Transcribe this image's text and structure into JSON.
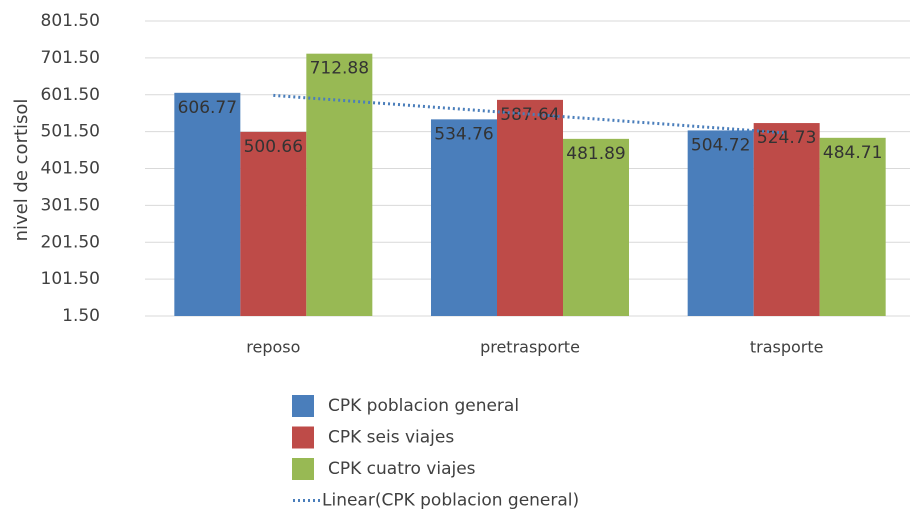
{
  "chart_data": {
    "type": "bar",
    "y_axis_label": "nivel de cortisol",
    "categories": [
      "reposo",
      "pretrasporte",
      "trasporte"
    ],
    "series": [
      {
        "name": "CPK poblacion general",
        "color": "#4a7ebb",
        "values": [
          606.77,
          534.76,
          504.72
        ],
        "trendline": {
          "name": "Linear(CPK poblacion general)",
          "color": "#4a7ebb",
          "style": "dotted"
        }
      },
      {
        "name": "CPK seis viajes",
        "color": "#be4b48",
        "values": [
          500.66,
          587.64,
          524.73
        ]
      },
      {
        "name": "CPK cuatro viajes",
        "color": "#98b954",
        "values": [
          712.88,
          481.89,
          484.71
        ]
      }
    ],
    "ylim": [
      1.5,
      801.5
    ],
    "yticks": [
      {
        "value": 1.5,
        "label": "1.50"
      },
      {
        "value": 101.5,
        "label": "101.50"
      },
      {
        "value": 201.5,
        "label": "201.50"
      },
      {
        "value": 301.5,
        "label": "301.50"
      },
      {
        "value": 401.5,
        "label": "401.50"
      },
      {
        "value": 501.5,
        "label": "501.50"
      },
      {
        "value": 601.5,
        "label": "601.50"
      },
      {
        "value": 701.5,
        "label": "701.50"
      },
      {
        "value": 801.5,
        "label": "801.50"
      }
    ],
    "grid": true,
    "legend": "bottom"
  }
}
